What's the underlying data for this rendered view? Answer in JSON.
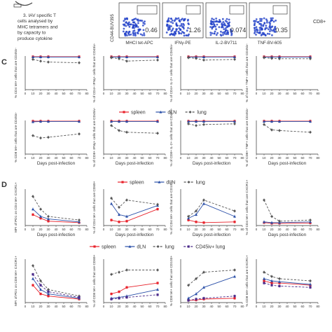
{
  "top": {
    "step_text": [
      "3. IAV specific T",
      "cells analysed by",
      "MHC tetramers and",
      "by capacity to",
      "produce cytokine"
    ],
    "flow_y_label": "CD44-BUV395",
    "flow_panels": [
      {
        "xlabel": "MHCI tet-APC",
        "value": "0.46"
      },
      {
        "xlabel": "IFNγ-PE",
        "value": "1.26"
      },
      {
        "xlabel": "IL-2-BV711",
        "value": "0.074"
      },
      {
        "xlabel": "TNF-BV-605",
        "value": "0.35"
      }
    ],
    "side_label": "CD8+"
  },
  "panel_labels": {
    "c": "C",
    "d": "D"
  },
  "legends": {
    "c_row2": [
      "spleen",
      "dLN",
      "lung"
    ],
    "d_row1": [
      "spleen",
      "dLN",
      "lung"
    ],
    "d_row2": [
      "spleen",
      "dLN",
      "lung",
      "CD45iv+ lung"
    ]
  },
  "colors": {
    "spleen": "#e8222b",
    "dLN": "#2a4fa8",
    "lung": "#555555",
    "iv_lung": "#4b2a8a",
    "flow": "#2040c8"
  },
  "chart_data": [
    {
      "type": "line",
      "ylabel": "% CD4 tet+ cells that are CD45iv-",
      "xlabel": "",
      "x": [
        10,
        20,
        30,
        70
      ],
      "xlim": [
        0,
        80
      ],
      "ylim": [
        0,
        100
      ],
      "series": [
        {
          "name": "spleen",
          "values": [
            98,
            98,
            98,
            98
          ]
        },
        {
          "name": "dLN",
          "values": [
            97,
            97,
            97,
            97
          ]
        },
        {
          "name": "lung",
          "values": [
            90,
            85,
            82,
            80
          ]
        }
      ]
    },
    {
      "type": "line",
      "ylabel": "% of CD4+ IFNγ+ cells that are CD45iv-",
      "xlabel": "",
      "x": [
        10,
        20,
        30,
        70
      ],
      "xlim": [
        0,
        80
      ],
      "ylim": [
        0,
        100
      ],
      "series": [
        {
          "name": "spleen",
          "values": [
            98,
            98,
            98,
            98
          ]
        },
        {
          "name": "dLN",
          "values": [
            97,
            97,
            97,
            97
          ]
        },
        {
          "name": "lung",
          "values": [
            95,
            92,
            85,
            88
          ]
        }
      ]
    },
    {
      "type": "line",
      "ylabel": "% of CD4+ IL-2+ cells that are CD45iv-",
      "xlabel": "",
      "x": [
        10,
        20,
        30,
        70
      ],
      "xlim": [
        0,
        80
      ],
      "ylim": [
        0,
        100
      ],
      "series": [
        {
          "name": "spleen",
          "values": [
            98,
            98,
            98,
            98
          ]
        },
        {
          "name": "dLN",
          "values": [
            97,
            97,
            97,
            97
          ]
        },
        {
          "name": "lung",
          "values": [
            95,
            93,
            88,
            90
          ]
        }
      ]
    },
    {
      "type": "line",
      "ylabel": "% of CD4+ TNF+ cells that are CD45iv-",
      "xlabel": "",
      "x": [
        10,
        20,
        30,
        70
      ],
      "xlim": [
        0,
        80
      ],
      "ylim": [
        0,
        100
      ],
      "series": [
        {
          "name": "spleen",
          "values": [
            98,
            98,
            98,
            98
          ]
        },
        {
          "name": "dLN",
          "values": [
            97,
            97,
            97,
            97
          ]
        },
        {
          "name": "lung",
          "values": [
            95,
            93,
            92,
            92
          ]
        }
      ]
    },
    {
      "type": "line",
      "ylabel": "% CD8 tet+ cells that are CD45iv-",
      "xlabel": "Days post-infection",
      "x": [
        10,
        20,
        30,
        70
      ],
      "xlim": [
        0,
        80
      ],
      "ylim": [
        0,
        100
      ],
      "series": [
        {
          "name": "spleen",
          "values": [
            98,
            98,
            98,
            98
          ]
        },
        {
          "name": "dLN",
          "values": [
            96,
            97,
            97,
            97
          ]
        },
        {
          "name": "lung",
          "values": [
            55,
            48,
            50,
            60
          ]
        }
      ]
    },
    {
      "type": "line",
      "ylabel": "% of CD8+ IFNγ+ cells that are CD45iv-",
      "xlabel": "Days post-infection",
      "x": [
        10,
        20,
        30,
        70
      ],
      "xlim": [
        0,
        80
      ],
      "ylim": [
        0,
        100
      ],
      "series": [
        {
          "name": "spleen",
          "values": [
            98,
            98,
            98,
            98
          ]
        },
        {
          "name": "dLN",
          "values": [
            97,
            97,
            97,
            97
          ]
        },
        {
          "name": "lung",
          "values": [
            85,
            70,
            65,
            62
          ]
        }
      ]
    },
    {
      "type": "line",
      "ylabel": "% of CD8+ IL-2+ cells that are CD45iv-",
      "xlabel": "Days post-infection",
      "x": [
        10,
        20,
        30,
        70
      ],
      "xlim": [
        0,
        80
      ],
      "ylim": [
        0,
        100
      ],
      "series": [
        {
          "name": "spleen",
          "values": [
            98,
            98,
            98,
            98
          ]
        },
        {
          "name": "dLN",
          "values": [
            97,
            97,
            97,
            97
          ]
        },
        {
          "name": "lung",
          "values": [
            90,
            85,
            88,
            90
          ]
        }
      ]
    },
    {
      "type": "line",
      "ylabel": "% of CD8+ TNF+ cells that are CD45iv-",
      "xlabel": "Days post-infection",
      "x": [
        10,
        20,
        30,
        70
      ],
      "xlim": [
        0,
        80
      ],
      "ylim": [
        0,
        100
      ],
      "series": [
        {
          "name": "spleen",
          "values": [
            98,
            98,
            98,
            98
          ]
        },
        {
          "name": "dLN",
          "values": [
            97,
            97,
            97,
            97
          ]
        },
        {
          "name": "lung",
          "values": [
            88,
            72,
            70,
            65
          ]
        }
      ]
    },
    {
      "type": "line",
      "ylabel": "MFI of PD1 on CD4 tet+ CXCR1+",
      "xlabel": "Days post-infection",
      "x": [
        10,
        20,
        30,
        70
      ],
      "xlim": [
        0,
        80
      ],
      "ylim": [
        0,
        100
      ],
      "series": [
        {
          "name": "spleen",
          "values": [
            30,
            20,
            12,
            8
          ]
        },
        {
          "name": "dLN",
          "values": [
            45,
            25,
            18,
            10
          ]
        },
        {
          "name": "lung",
          "values": [
            80,
            45,
            25,
            15
          ]
        }
      ]
    },
    {
      "type": "line",
      "ylabel": "% of CD4 tet+ cells that are CD69+",
      "xlabel": "Days post-infection",
      "x": [
        10,
        20,
        30,
        70
      ],
      "xlim": [
        0,
        80
      ],
      "ylim": [
        0,
        100
      ],
      "series": [
        {
          "name": "spleen",
          "values": [
            15,
            10,
            12,
            45
          ]
        },
        {
          "name": "dLN",
          "values": [
            60,
            30,
            25,
            55
          ]
        },
        {
          "name": "lung",
          "values": [
            75,
            50,
            70,
            58
          ]
        }
      ]
    },
    {
      "type": "line",
      "ylabel": "% of CD4 tet+ cells that are CD103+",
      "xlabel": "Days post-infection",
      "x": [
        10,
        20,
        30,
        70
      ],
      "xlim": [
        0,
        80
      ],
      "ylim": [
        0,
        100
      ],
      "series": [
        {
          "name": "spleen",
          "values": [
            15,
            10,
            8,
            10
          ]
        },
        {
          "name": "dLN",
          "values": [
            20,
            30,
            60,
            25
          ]
        },
        {
          "name": "lung",
          "values": [
            25,
            40,
            70,
            40
          ]
        }
      ]
    },
    {
      "type": "line",
      "ylabel": "% of CD4 tet+ cells that are CXCR1+",
      "xlabel": "Days post-infection",
      "x": [
        10,
        20,
        30,
        70
      ],
      "xlim": [
        0,
        80
      ],
      "ylim": [
        0,
        100
      ],
      "series": [
        {
          "name": "spleen",
          "values": [
            8,
            6,
            6,
            7
          ]
        },
        {
          "name": "dLN",
          "values": [
            10,
            8,
            8,
            10
          ]
        },
        {
          "name": "lung",
          "values": [
            70,
            25,
            12,
            15
          ]
        }
      ]
    },
    {
      "type": "line",
      "ylabel": "MFI of PD1 on CD8 tet+ CXCR1+",
      "xlabel": "",
      "x": [
        10,
        20,
        30,
        70
      ],
      "xlim": [
        0,
        80
      ],
      "ylim": [
        0,
        100
      ],
      "series": [
        {
          "name": "spleen",
          "values": [
            40,
            20,
            15,
            8
          ]
        },
        {
          "name": "dLN",
          "values": [
            55,
            30,
            20,
            10
          ]
        },
        {
          "name": "lung",
          "values": [
            85,
            50,
            30,
            15
          ]
        },
        {
          "name": "CD45iv+ lung",
          "values": [
            65,
            40,
            25,
            12
          ]
        }
      ]
    },
    {
      "type": "line",
      "ylabel": "% of CD8 tet+ cells that are CD69+",
      "xlabel": "",
      "x": [
        10,
        20,
        30,
        70
      ],
      "xlim": [
        0,
        80
      ],
      "ylim": [
        0,
        100
      ],
      "series": [
        {
          "name": "spleen",
          "values": [
            20,
            25,
            35,
            45
          ]
        },
        {
          "name": "dLN",
          "values": [
            10,
            12,
            15,
            30
          ]
        },
        {
          "name": "lung",
          "values": [
            65,
            70,
            75,
            75
          ]
        },
        {
          "name": "CD45iv+ lung",
          "values": [
            8,
            10,
            12,
            18
          ]
        }
      ]
    },
    {
      "type": "line",
      "ylabel": "% CD8 tet+ cells that are CD103+",
      "xlabel": "",
      "x": [
        10,
        20,
        30,
        70
      ],
      "xlim": [
        0,
        80
      ],
      "ylim": [
        0,
        100
      ],
      "series": [
        {
          "name": "spleen",
          "values": [
            5,
            6,
            8,
            10
          ]
        },
        {
          "name": "dLN",
          "values": [
            10,
            20,
            35,
            60
          ]
        },
        {
          "name": "lung",
          "values": [
            40,
            55,
            70,
            75
          ]
        },
        {
          "name": "CD45iv+ lung",
          "values": [
            5,
            8,
            10,
            15
          ]
        }
      ]
    },
    {
      "type": "line",
      "ylabel": "% CD8 tet+ cells that are CXCR1+",
      "xlabel": "",
      "x": [
        10,
        20,
        30,
        70
      ],
      "xlim": [
        0,
        80
      ],
      "ylim": [
        0,
        100
      ],
      "series": [
        {
          "name": "spleen",
          "values": [
            50,
            45,
            45,
            40
          ]
        },
        {
          "name": "dLN",
          "values": [
            55,
            50,
            48,
            42
          ]
        },
        {
          "name": "lung",
          "values": [
            70,
            60,
            55,
            50
          ]
        },
        {
          "name": "CD45iv+ lung",
          "values": [
            45,
            40,
            38,
            35
          ]
        }
      ]
    }
  ]
}
